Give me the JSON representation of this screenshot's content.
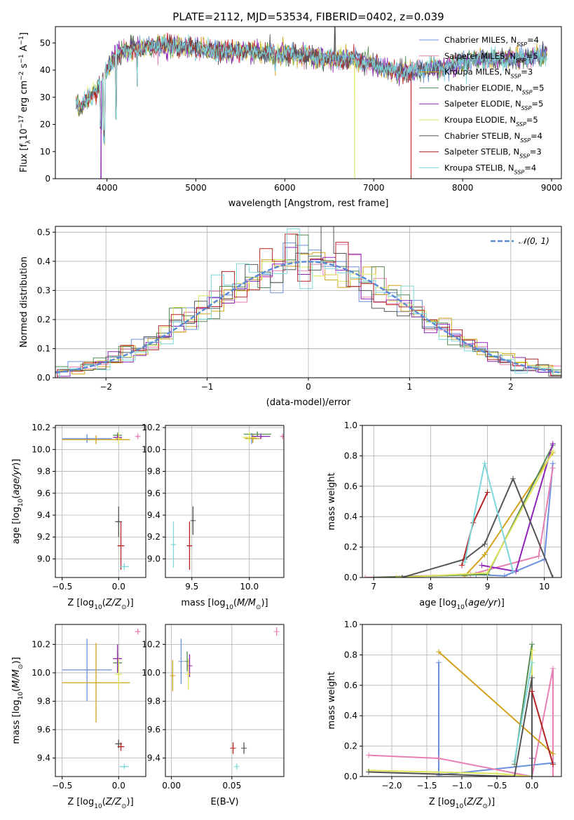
{
  "figure": {
    "title": "PLATE=2112, MJD=53534, FIBERID=0402, z=0.039",
    "colors": [
      "#6a8fdc",
      "#e87fb2",
      "#d2a21a",
      "#548a54",
      "#8f25b8",
      "#dde35a",
      "#555555",
      "#b22222",
      "#7ed7da"
    ]
  },
  "legends": {
    "spectrum": [
      {
        "base": "Chabrier MILES, N",
        "sub": "SSP",
        "tail": "=4",
        "color": "#6a8fdc"
      },
      {
        "base": "Salpeter MILES, N",
        "sub": "SSP",
        "tail": "=5",
        "color": "#e87fb2"
      },
      {
        "base": "Kroupa MILES, N",
        "sub": "SSP",
        "tail": "=3",
        "color": "#d2a21a"
      },
      {
        "base": "Chabrier ELODIE, N",
        "sub": "SSP",
        "tail": "=5",
        "color": "#548a54"
      },
      {
        "base": "Salpeter ELODIE, N",
        "sub": "SSP",
        "tail": "=5",
        "color": "#8f25b8"
      },
      {
        "base": "Kroupa ELODIE, N",
        "sub": "SSP",
        "tail": "=5",
        "color": "#dde35a"
      },
      {
        "base": "Chabrier STELIB, N",
        "sub": "SSP",
        "tail": "=4",
        "color": "#555555"
      },
      {
        "base": "Salpeter STELIB, N",
        "sub": "SSP",
        "tail": "=3",
        "color": "#b22222"
      },
      {
        "base": "Kroupa STELIB, N",
        "sub": "SSP",
        "tail": "=4",
        "color": "#7ed7da"
      }
    ],
    "residual": {
      "label": "𝒩(0, 1)",
      "color": "#5b8bd6"
    }
  },
  "chart_data": [
    {
      "id": "spectrum",
      "type": "line",
      "title": "PLATE=2112, MJD=53534, FIBERID=0402, z=0.039",
      "xlabel": "wavelength [Angstrom, rest frame]",
      "ylabel": "Flux [f_λ 10^-17 erg cm^-2 s^-1 A^-1]",
      "xlim": [
        3420,
        9110
      ],
      "ylim": [
        0,
        56
      ],
      "xticks": [
        4000,
        5000,
        6000,
        7000,
        8000,
        9000
      ],
      "yticks": [
        0,
        10,
        20,
        30,
        40,
        50
      ],
      "grid": false,
      "legend": "top-right",
      "continuum": {
        "x": [
          3650,
          3700,
          3800,
          3900,
          4000,
          4100,
          4200,
          4300,
          4400,
          4500,
          4700,
          5000,
          5200,
          5500,
          5800,
          6000,
          6300,
          6600,
          6800,
          7000,
          7200,
          7400,
          7500,
          7800,
          8000,
          8200,
          8500,
          8800,
          8950
        ],
        "y": [
          29,
          26,
          30,
          34,
          40,
          46,
          47,
          48,
          48,
          49,
          49,
          48,
          47,
          47,
          46,
          46,
          45,
          44,
          44,
          42,
          40,
          39,
          40,
          41,
          43,
          44,
          44,
          45,
          46
        ]
      },
      "features": [
        {
          "x": 3935,
          "y": 0,
          "series": 4
        },
        {
          "x": 3970,
          "y": 12
        },
        {
          "x": 4102,
          "y": 22
        },
        {
          "x": 4340,
          "y": 34
        },
        {
          "x": 6563,
          "y": 56,
          "series": 6
        },
        {
          "x": 6785,
          "y": 0,
          "series": 5
        },
        {
          "x": 7420,
          "y": 0,
          "series": 7
        }
      ]
    },
    {
      "id": "residuals",
      "type": "histogram",
      "xlabel": "(data-model)/error",
      "ylabel": "Normed distribution",
      "xlim": [
        -2.5,
        2.5
      ],
      "ylim": [
        0,
        0.52
      ],
      "xticks": [
        -2,
        -1,
        0,
        1,
        2
      ],
      "yticks": [
        0.0,
        0.1,
        0.2,
        0.3,
        0.4,
        0.5
      ],
      "grid": true,
      "legend": "top-right",
      "bins": 40,
      "reference": "normal(0,1)"
    },
    {
      "id": "age-vs-Z",
      "type": "errorbar",
      "xlabel": "Z [log10(Z/Z☉)]",
      "ylabel": "age [log10(age/yr)]",
      "xlim": [
        -0.56,
        0.24
      ],
      "ylim": [
        8.83,
        10.22
      ],
      "xticks": [
        -0.5,
        0.0
      ],
      "yticks": [
        9.0,
        9.2,
        9.4,
        9.6,
        9.8,
        10.0,
        10.2
      ],
      "grid": true,
      "points": [
        {
          "x": -0.28,
          "y": 10.1,
          "xerr": 0.22,
          "yerr": 0.04,
          "c": 0
        },
        {
          "x": 0.17,
          "y": 10.12,
          "xerr": 0.02,
          "yerr": 0.02,
          "c": 1
        },
        {
          "x": -0.2,
          "y": 10.09,
          "xerr": 0.3,
          "yerr": 0.04,
          "c": 2
        },
        {
          "x": -0.01,
          "y": 10.13,
          "xerr": 0.04,
          "yerr": 0.02,
          "c": 3
        },
        {
          "x": -0.01,
          "y": 10.11,
          "xerr": 0.04,
          "yerr": 0.02,
          "c": 4
        },
        {
          "x": 0.0,
          "y": 10.1,
          "xerr": 0.03,
          "yerr": 0.05,
          "c": 5
        },
        {
          "x": 0.0,
          "y": 9.34,
          "xerr": 0.03,
          "yerr": 0.14,
          "c": 6
        },
        {
          "x": 0.02,
          "y": 9.12,
          "xerr": 0.03,
          "yerr": 0.22,
          "c": 7
        },
        {
          "x": 0.05,
          "y": 8.93,
          "xerr": 0.04,
          "yerr": 0.03,
          "c": 8
        }
      ]
    },
    {
      "id": "age-vs-mass",
      "type": "errorbar",
      "xlabel": "mass [log10(M/M☉)]",
      "xlim": [
        9.27,
        10.3
      ],
      "ylim": [
        8.83,
        10.22
      ],
      "xticks": [
        9.5,
        10.0
      ],
      "yticks": [
        9.0,
        9.2,
        9.4,
        9.6,
        9.8,
        10.0,
        10.2
      ],
      "grid": true,
      "points": [
        {
          "x": 10.02,
          "y": 10.1,
          "xerr": 0.05,
          "yerr": 0.05,
          "c": 0
        },
        {
          "x": 10.29,
          "y": 10.12,
          "xerr": 0.02,
          "yerr": 0.02,
          "c": 1
        },
        {
          "x": 10.03,
          "y": 10.1,
          "xerr": 0.07,
          "yerr": 0.04,
          "c": 2
        },
        {
          "x": 10.07,
          "y": 10.14,
          "xerr": 0.12,
          "yerr": 0.02,
          "c": 3
        },
        {
          "x": 10.1,
          "y": 10.12,
          "xerr": 0.08,
          "yerr": 0.02,
          "c": 4
        },
        {
          "x": 10.0,
          "y": 10.11,
          "xerr": 0.06,
          "yerr": 0.05,
          "c": 5
        },
        {
          "x": 9.51,
          "y": 9.35,
          "xerr": 0.01,
          "yerr": 0.13,
          "c": 6
        },
        {
          "x": 9.48,
          "y": 9.12,
          "xerr": 0.02,
          "yerr": 0.22,
          "c": 7
        },
        {
          "x": 9.34,
          "y": 9.13,
          "xerr": 0.01,
          "yerr": 0.21,
          "c": 8
        }
      ]
    },
    {
      "id": "massweight-vs-age",
      "type": "line",
      "xlabel": "age [log10(age/yr)]",
      "ylabel": "mass weight",
      "xlim": [
        6.8,
        10.3
      ],
      "ylim": [
        0,
        1.0
      ],
      "xticks": [
        7,
        8,
        9,
        10
      ],
      "yticks": [
        0.0,
        0.2,
        0.4,
        0.6,
        0.8,
        1.0
      ],
      "grid": true,
      "series": [
        {
          "c": 0,
          "x": [
            8.8,
            9.3,
            10.0,
            10.15
          ],
          "y": [
            0.02,
            0.01,
            0.12,
            0.75
          ]
        },
        {
          "c": 1,
          "x": [
            6.85,
            8.7,
            9.9,
            10.15
          ],
          "y": [
            0.0,
            0.02,
            0.14,
            0.72
          ]
        },
        {
          "c": 2,
          "x": [
            8.6,
            8.95,
            10.15
          ],
          "y": [
            0.01,
            0.15,
            0.82
          ]
        },
        {
          "c": 3,
          "x": [
            7.0,
            9.0,
            10.15
          ],
          "y": [
            0.0,
            0.02,
            0.87
          ]
        },
        {
          "c": 4,
          "x": [
            8.9,
            9.5,
            10.15
          ],
          "y": [
            0.08,
            0.04,
            0.88
          ]
        },
        {
          "c": 5,
          "x": [
            7.4,
            9.0,
            10.15
          ],
          "y": [
            0.0,
            0.03,
            0.83
          ]
        },
        {
          "c": 6,
          "x": [
            7.5,
            8.6,
            8.95,
            9.45,
            10.15
          ],
          "y": [
            0.0,
            0.12,
            0.22,
            0.65,
            0.0
          ]
        },
        {
          "c": 7,
          "x": [
            8.55,
            8.75,
            9.0
          ],
          "y": [
            0.08,
            0.36,
            0.56
          ]
        },
        {
          "c": 8,
          "x": [
            8.6,
            8.95,
            9.45
          ],
          "y": [
            0.1,
            0.75,
            0.04
          ]
        }
      ]
    },
    {
      "id": "mass-vs-Z",
      "type": "errorbar",
      "xlabel": "Z [log10(Z/Z☉)]",
      "ylabel": "mass [log10(M/M☉)]",
      "xlim": [
        -0.56,
        0.24
      ],
      "ylim": [
        9.27,
        10.34
      ],
      "xticks": [
        -0.5,
        0.0
      ],
      "yticks": [
        9.4,
        9.6,
        9.8,
        10.0,
        10.2
      ],
      "grid": true,
      "points": [
        {
          "x": -0.28,
          "y": 10.02,
          "xerr": 0.22,
          "yerr": 0.22,
          "c": 0
        },
        {
          "x": 0.17,
          "y": 10.29,
          "xerr": 0.02,
          "yerr": 0.02,
          "c": 1
        },
        {
          "x": -0.2,
          "y": 9.93,
          "xerr": 0.3,
          "yerr": 0.28,
          "c": 2
        },
        {
          "x": -0.01,
          "y": 10.07,
          "xerr": 0.04,
          "yerr": 0.07,
          "c": 3
        },
        {
          "x": -0.01,
          "y": 10.1,
          "xerr": 0.04,
          "yerr": 0.1,
          "c": 4
        },
        {
          "x": 0.0,
          "y": 9.99,
          "xerr": 0.03,
          "yerr": 0.11,
          "c": 5
        },
        {
          "x": 0.0,
          "y": 9.5,
          "xerr": 0.03,
          "yerr": 0.03,
          "c": 6
        },
        {
          "x": 0.02,
          "y": 9.48,
          "xerr": 0.03,
          "yerr": 0.03,
          "c": 7
        },
        {
          "x": 0.05,
          "y": 9.34,
          "xerr": 0.04,
          "yerr": 0.01,
          "c": 8
        }
      ]
    },
    {
      "id": "mass-vs-EBV",
      "type": "errorbar",
      "xlabel": "E(B-V)",
      "xlim": [
        -0.005,
        0.093
      ],
      "ylim": [
        9.27,
        10.34
      ],
      "xticks": [
        0.0,
        0.05
      ],
      "yticks": [
        9.4,
        9.6,
        9.8,
        10.0,
        10.2
      ],
      "grid": true,
      "points": [
        {
          "x": 0.008,
          "y": 10.08,
          "yerr": 0.16,
          "c": 0
        },
        {
          "x": 0.087,
          "y": 10.29,
          "yerr": 0.03,
          "c": 1
        },
        {
          "x": 0.001,
          "y": 9.98,
          "yerr": 0.11,
          "c": 2
        },
        {
          "x": 0.013,
          "y": 10.08,
          "yerr": 0.07,
          "c": 3
        },
        {
          "x": 0.015,
          "y": 10.05,
          "yerr": 0.08,
          "c": 4
        },
        {
          "x": 0.014,
          "y": 9.99,
          "yerr": 0.11,
          "c": 5
        },
        {
          "x": 0.06,
          "y": 9.47,
          "yerr": 0.04,
          "c": 6
        },
        {
          "x": 0.051,
          "y": 9.47,
          "yerr": 0.04,
          "c": 7
        },
        {
          "x": 0.054,
          "y": 9.34,
          "yerr": 0.02,
          "c": 8
        }
      ]
    },
    {
      "id": "massweight-vs-Z",
      "type": "line",
      "xlabel": "Z [log10(Z/Z☉)]",
      "ylabel": "mass weight",
      "xlim": [
        -2.42,
        0.42
      ],
      "ylim": [
        0,
        1.0
      ],
      "xticks": [
        -2.0,
        -1.5,
        -1.0,
        -0.5,
        0.0
      ],
      "yticks": [
        0.0,
        0.2,
        0.4,
        0.6,
        0.8,
        1.0
      ],
      "grid": true,
      "series": [
        {
          "c": 0,
          "x": [
            -1.33,
            -1.33,
            0.3
          ],
          "y": [
            0.75,
            0.01,
            0.09
          ]
        },
        {
          "c": 1,
          "x": [
            -2.33,
            -1.33,
            0.0,
            0.3,
            0.3
          ],
          "y": [
            0.14,
            0.12,
            0.0,
            0.71,
            0.0
          ]
        },
        {
          "c": 2,
          "x": [
            -1.33,
            0.3
          ],
          "y": [
            0.82,
            0.15
          ]
        },
        {
          "c": 3,
          "x": [
            -0.25,
            0.0,
            0.0
          ],
          "y": [
            0.08,
            0.87,
            0.0
          ]
        },
        {
          "c": 4,
          "x": [
            0.0,
            0.0
          ],
          "y": [
            0.12,
            0.0
          ]
        },
        {
          "c": 5,
          "x": [
            -2.33,
            -0.5,
            0.0,
            0.0
          ],
          "y": [
            0.04,
            0.02,
            0.0,
            0.83
          ]
        },
        {
          "c": 6,
          "x": [
            -2.33,
            -0.25,
            0.0,
            0.0
          ],
          "y": [
            0.03,
            0.0,
            0.65,
            0.0
          ]
        },
        {
          "c": 7,
          "x": [
            0.0,
            0.3
          ],
          "y": [
            0.56,
            0.08
          ]
        },
        {
          "c": 8,
          "x": [
            -0.25,
            0.0
          ],
          "y": [
            0.1,
            0.75
          ]
        }
      ]
    }
  ]
}
